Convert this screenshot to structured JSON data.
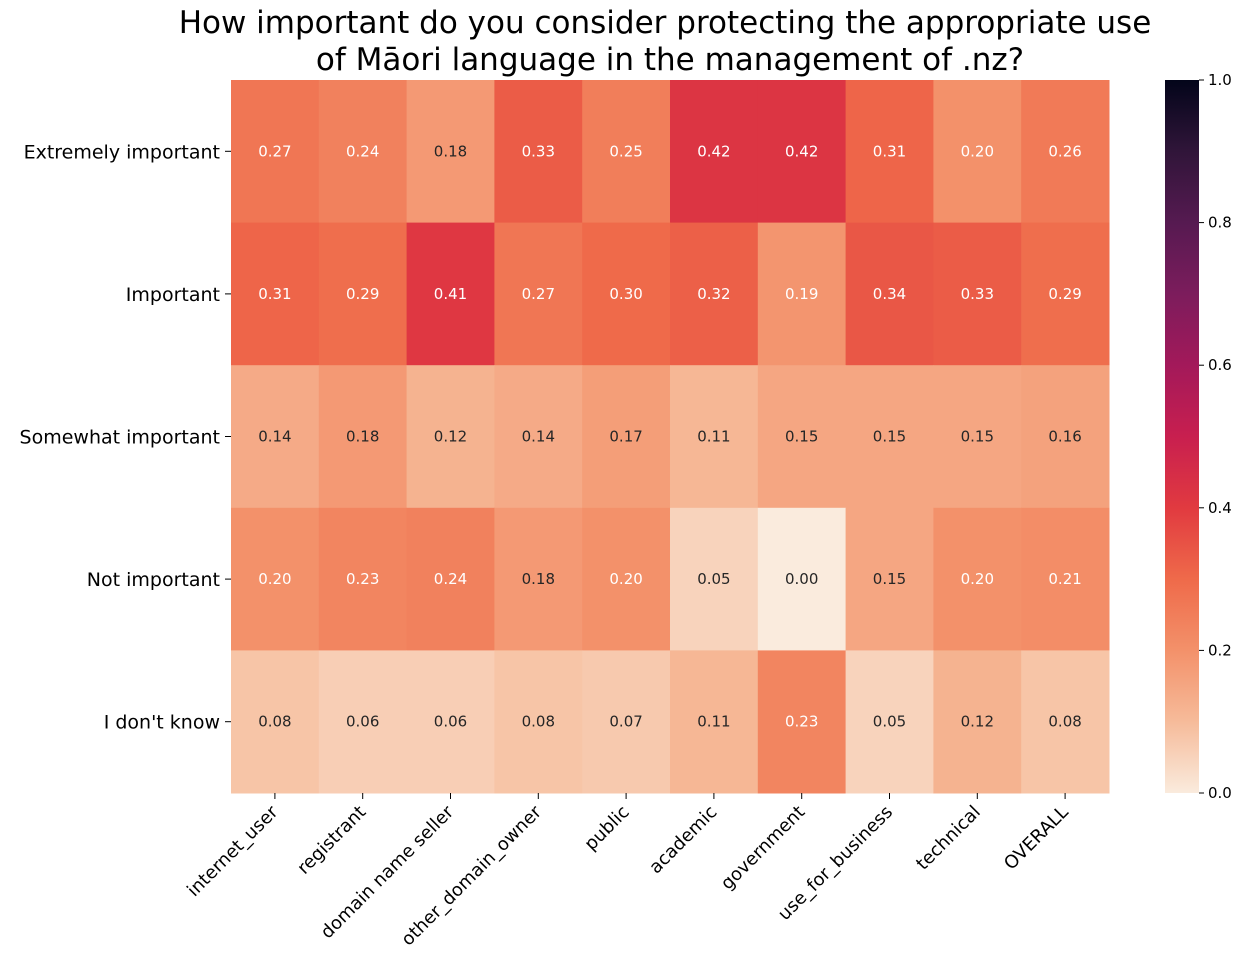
{
  "chart_data": {
    "type": "heatmap",
    "title": [
      "How important do you consider protecting the appropriate use",
      "of Māori language in the management of .nz?"
    ],
    "rows": [
      "Extremely important",
      "Important",
      "Somewhat important",
      "Not important",
      "I don't know"
    ],
    "columns": [
      "internet_user",
      "registrant",
      "domain name seller",
      "other_domain_owner",
      "public",
      "academic",
      "government",
      "use_for_business",
      "technical",
      "OVERALL"
    ],
    "values": [
      [
        0.27,
        0.24,
        0.18,
        0.33,
        0.25,
        0.42,
        0.42,
        0.31,
        0.2,
        0.26
      ],
      [
        0.31,
        0.29,
        0.41,
        0.27,
        0.3,
        0.32,
        0.19,
        0.34,
        0.33,
        0.29
      ],
      [
        0.14,
        0.18,
        0.12,
        0.14,
        0.17,
        0.11,
        0.15,
        0.15,
        0.15,
        0.16
      ],
      [
        0.2,
        0.23,
        0.24,
        0.18,
        0.2,
        0.05,
        0.0,
        0.15,
        0.2,
        0.21
      ],
      [
        0.08,
        0.06,
        0.06,
        0.08,
        0.07,
        0.11,
        0.23,
        0.05,
        0.12,
        0.08
      ]
    ],
    "value_format": "0.00",
    "colormap": "rocket_r",
    "colorbar": {
      "range": [
        0.0,
        1.0
      ],
      "ticks": [
        "0.0",
        "0.2",
        "0.4",
        "0.6",
        "0.8",
        "1.0"
      ]
    },
    "grid": false,
    "legend": "colorbar-right"
  }
}
